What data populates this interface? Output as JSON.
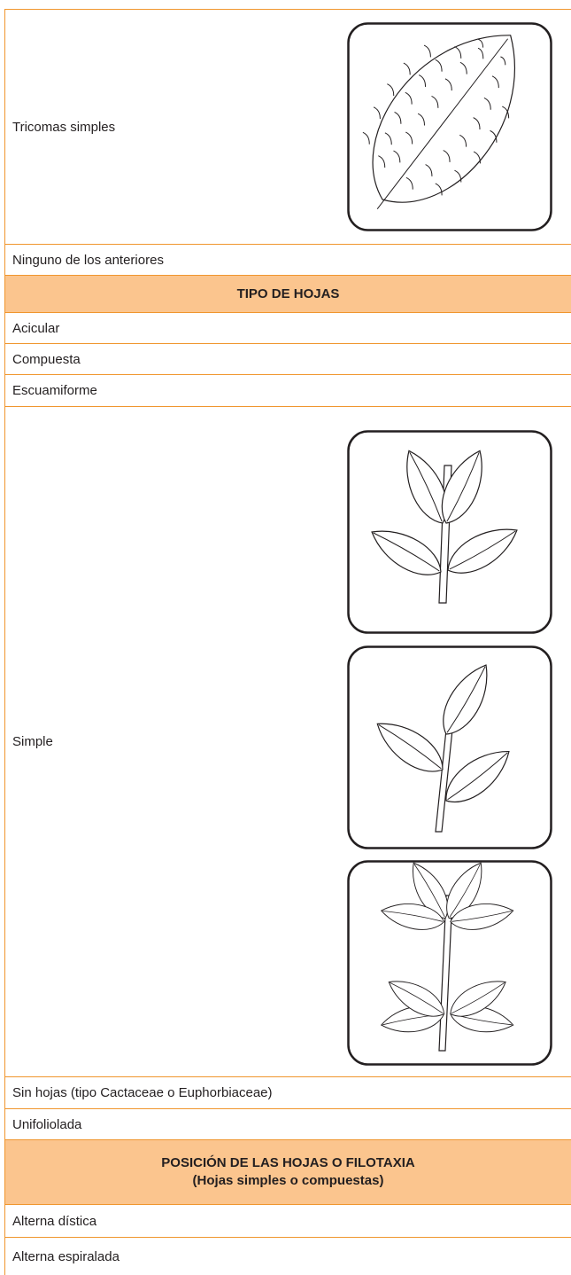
{
  "table": {
    "rows": [
      "Tricomas simples",
      "Ninguno de los anteriores",
      "TIPO DE HOJAS",
      "Acicular",
      "Compuesta",
      "Escuamiforme",
      "Simple",
      "Sin hojas (tipo Cactaceae o Euphorbiaceae)",
      "Unifoliolada",
      [
        "POSICIÓN DE LAS HOJAS O FILOTAXIA",
        "(Hojas simples o compuestas)"
      ],
      "Alterna dística",
      "Alterna espiralada"
    ]
  }
}
